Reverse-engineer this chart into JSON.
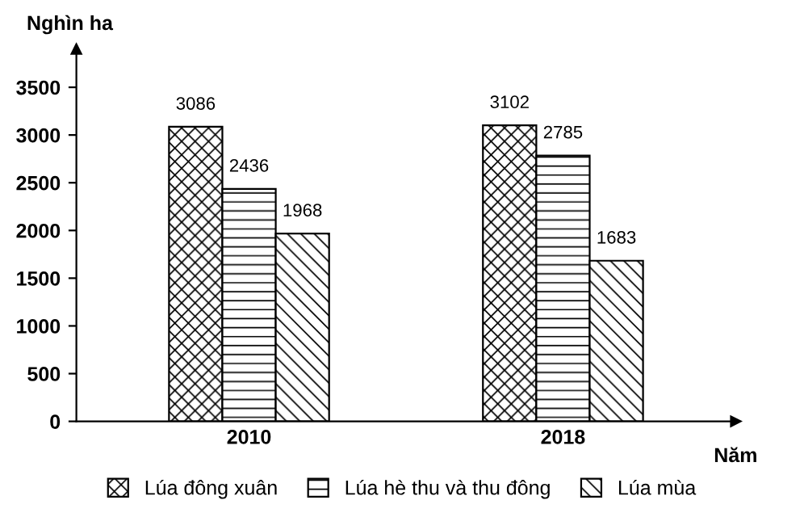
{
  "chart_data": {
    "type": "bar",
    "ylabel": "Nghìn ha",
    "xlabel": "Năm",
    "categories": [
      "2010",
      "2018"
    ],
    "series": [
      {
        "name": "Lúa đông xuân",
        "color": "#000000",
        "values": [
          3086,
          3102
        ]
      },
      {
        "name": "Lúa hè thu và thu đông",
        "color": "#000000",
        "values": [
          2436,
          2785
        ]
      },
      {
        "name": "Lúa mùa",
        "color": "#000000",
        "values": [
          1968,
          1683
        ]
      }
    ],
    "ylim": [
      0,
      3900
    ],
    "yticks": [
      0,
      500,
      1000,
      1500,
      2000,
      2500,
      3000,
      3500
    ],
    "data_labels": true,
    "legend": "bottom",
    "grid": false
  }
}
